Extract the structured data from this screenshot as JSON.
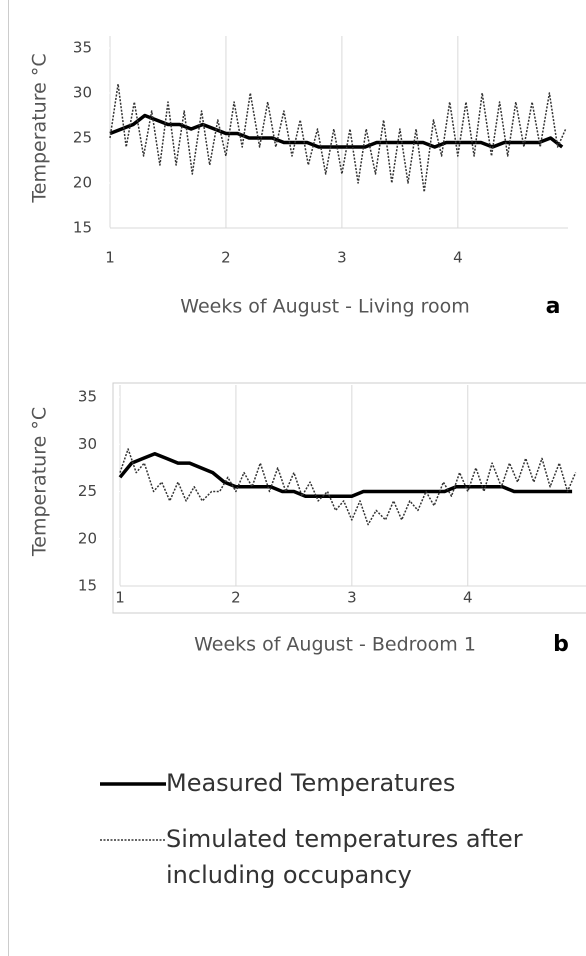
{
  "chart_data": [
    {
      "type": "line",
      "ylabel": "Temperature °C",
      "xlabel": "Weeks of August - Living room",
      "panel_label": "a",
      "xlim": [
        1,
        4.95
      ],
      "ylim": [
        15,
        35
      ],
      "xticks": [
        1,
        2,
        3,
        4
      ],
      "yticks": [
        15,
        20,
        25,
        30,
        35
      ],
      "grid": true,
      "series": [
        {
          "name": "Measured Temperatures",
          "color": "#000000",
          "style": "solid",
          "x": [
            1.0,
            1.1,
            1.2,
            1.3,
            1.4,
            1.5,
            1.6,
            1.7,
            1.8,
            1.9,
            2.0,
            2.1,
            2.2,
            2.3,
            2.4,
            2.5,
            2.6,
            2.7,
            2.8,
            2.9,
            3.0,
            3.1,
            3.2,
            3.3,
            3.4,
            3.5,
            3.6,
            3.7,
            3.8,
            3.9,
            4.0,
            4.1,
            4.2,
            4.3,
            4.4,
            4.5,
            4.6,
            4.7,
            4.8,
            4.9
          ],
          "values": [
            25.5,
            26,
            26.5,
            27.5,
            27,
            26.5,
            26.5,
            26,
            26.5,
            26,
            25.5,
            25.5,
            25,
            25,
            25,
            24.5,
            24.5,
            24.5,
            24,
            24,
            24,
            24,
            24,
            24.5,
            24.5,
            24.5,
            24.5,
            24.5,
            24,
            24.5,
            24.5,
            24.5,
            24.5,
            24,
            24.5,
            24.5,
            24.5,
            24.5,
            25,
            24
          ]
        },
        {
          "name": "Simulated temperatures after including occupancy",
          "color": "#333333",
          "style": "dotted",
          "x": [
            1.0,
            1.07,
            1.14,
            1.21,
            1.29,
            1.36,
            1.43,
            1.5,
            1.57,
            1.64,
            1.71,
            1.79,
            1.86,
            1.93,
            2.0,
            2.07,
            2.14,
            2.21,
            2.29,
            2.36,
            2.43,
            2.5,
            2.57,
            2.64,
            2.71,
            2.79,
            2.86,
            2.93,
            3.0,
            3.07,
            3.14,
            3.21,
            3.29,
            3.36,
            3.43,
            3.5,
            3.57,
            3.64,
            3.71,
            3.79,
            3.86,
            3.93,
            4.0,
            4.07,
            4.14,
            4.21,
            4.29,
            4.36,
            4.43,
            4.5,
            4.57,
            4.64,
            4.71,
            4.79,
            4.86,
            4.93
          ],
          "values": [
            25,
            31,
            24,
            29,
            23,
            28,
            22,
            29,
            22,
            28,
            21,
            28,
            22,
            27,
            23,
            29,
            24,
            30,
            24,
            29,
            24,
            28,
            23,
            27,
            22,
            26,
            21,
            26,
            21,
            26,
            20,
            26,
            21,
            27,
            20,
            26,
            20,
            26,
            19,
            27,
            23,
            29,
            23,
            29,
            23,
            30,
            23,
            29,
            23,
            29,
            24,
            29,
            24,
            30,
            24,
            26
          ]
        }
      ]
    },
    {
      "type": "line",
      "ylabel": "Temperature °C",
      "xlabel": "Weeks of August - Bedroom 1",
      "panel_label": "b",
      "xlim": [
        1,
        5.02
      ],
      "ylim": [
        15,
        35
      ],
      "xticks": [
        1,
        2,
        3,
        4
      ],
      "yticks": [
        15,
        20,
        25,
        30,
        35
      ],
      "grid": true,
      "series": [
        {
          "color": "#000000",
          "style": "solid",
          "x": [
            1.0,
            1.1,
            1.2,
            1.3,
            1.4,
            1.5,
            1.6,
            1.7,
            1.8,
            1.9,
            2.0,
            2.1,
            2.2,
            2.3,
            2.4,
            2.5,
            2.6,
            2.7,
            2.8,
            2.9,
            3.0,
            3.1,
            3.2,
            3.3,
            3.4,
            3.5,
            3.6,
            3.7,
            3.8,
            3.9,
            4.0,
            4.1,
            4.2,
            4.3,
            4.4,
            4.5,
            4.6,
            4.7,
            4.8,
            4.9
          ],
          "values": [
            26.5,
            28,
            28.5,
            29,
            28.5,
            28,
            28,
            27.5,
            27,
            26,
            25.5,
            25.5,
            25.5,
            25.5,
            25,
            25,
            24.5,
            24.5,
            24.5,
            24.5,
            24.5,
            25,
            25,
            25,
            25,
            25,
            25,
            25,
            25,
            25.5,
            25.5,
            25.5,
            25.5,
            25.5,
            25,
            25,
            25,
            25,
            25,
            25
          ]
        },
        {
          "color": "#333333",
          "style": "dotted",
          "x": [
            1.0,
            1.07,
            1.14,
            1.21,
            1.29,
            1.36,
            1.43,
            1.5,
            1.57,
            1.64,
            1.71,
            1.79,
            1.86,
            1.93,
            2.0,
            2.07,
            2.14,
            2.21,
            2.29,
            2.36,
            2.43,
            2.5,
            2.57,
            2.64,
            2.71,
            2.79,
            2.86,
            2.93,
            3.0,
            3.07,
            3.14,
            3.21,
            3.29,
            3.36,
            3.43,
            3.5,
            3.57,
            3.64,
            3.71,
            3.79,
            3.86,
            3.93,
            4.0,
            4.07,
            4.14,
            4.21,
            4.29,
            4.36,
            4.43,
            4.5,
            4.57,
            4.64,
            4.71,
            4.79,
            4.86,
            4.93
          ],
          "values": [
            27,
            29.5,
            27,
            28,
            25,
            26,
            24,
            26,
            24,
            25.5,
            24,
            25,
            25,
            26.5,
            25,
            27,
            25.5,
            28,
            25,
            27.5,
            25,
            27,
            24.5,
            26,
            24,
            25,
            23,
            24,
            22,
            24,
            21.5,
            23,
            22,
            24,
            22,
            24,
            23,
            25,
            23.5,
            26,
            24.5,
            27,
            25,
            27.5,
            25,
            28,
            25.5,
            28,
            26,
            28.5,
            26,
            28.5,
            25.5,
            28,
            25,
            27
          ]
        }
      ]
    }
  ]
}
